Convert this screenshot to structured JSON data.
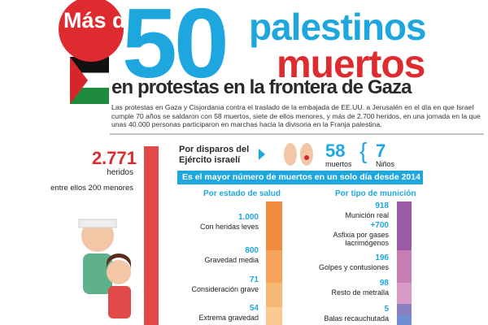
{
  "header": {
    "lead": "Más de",
    "number": "50",
    "line1": "palestinos",
    "line2": "muertos",
    "line3": "en protestas en la frontera de Gaza"
  },
  "intro": "Las protestas en Gaza y Cisjordania contra el traslado de la embajada de EE.UU. a Jerusalén en el día en que Israel cumple 70 años se saldaron con 58 muertos, siete de ellos menores, y más de 2.700 heridos, en una jornada en la que unas 40.000 personas participaron en marchas hacia la divisoria en la Franja palestina.",
  "injured": {
    "value": "2.771",
    "label": "heridos",
    "note": "entre ellos 200 menores"
  },
  "killed": {
    "heading": "Por disparos del Ejército israelí",
    "value": "58",
    "label": "muertos",
    "children_value": "7",
    "children_label": "Niños"
  },
  "banner": "Es el mayor número de muertos en un solo día desde 2014",
  "health": {
    "title": "Por estado de salud",
    "items": [
      {
        "value": "1.000",
        "label": "Con heridas leves"
      },
      {
        "value": "800",
        "label": "Gravedad media"
      },
      {
        "value": "71",
        "label": "Consideración grave"
      },
      {
        "value": "54",
        "label": "Extrema gravedad"
      }
    ]
  },
  "ammo": {
    "title": "Por tipo de munición",
    "items": [
      {
        "value": "918",
        "label": "Munición real"
      },
      {
        "value": "+700",
        "label": "Asfixia por gases lacrimógenos"
      },
      {
        "value": "196",
        "label": "Golpes y contusiones"
      },
      {
        "value": "98",
        "label": "Resto de metralla"
      },
      {
        "value": "5",
        "label": "Balas recauchutada"
      }
    ]
  }
}
